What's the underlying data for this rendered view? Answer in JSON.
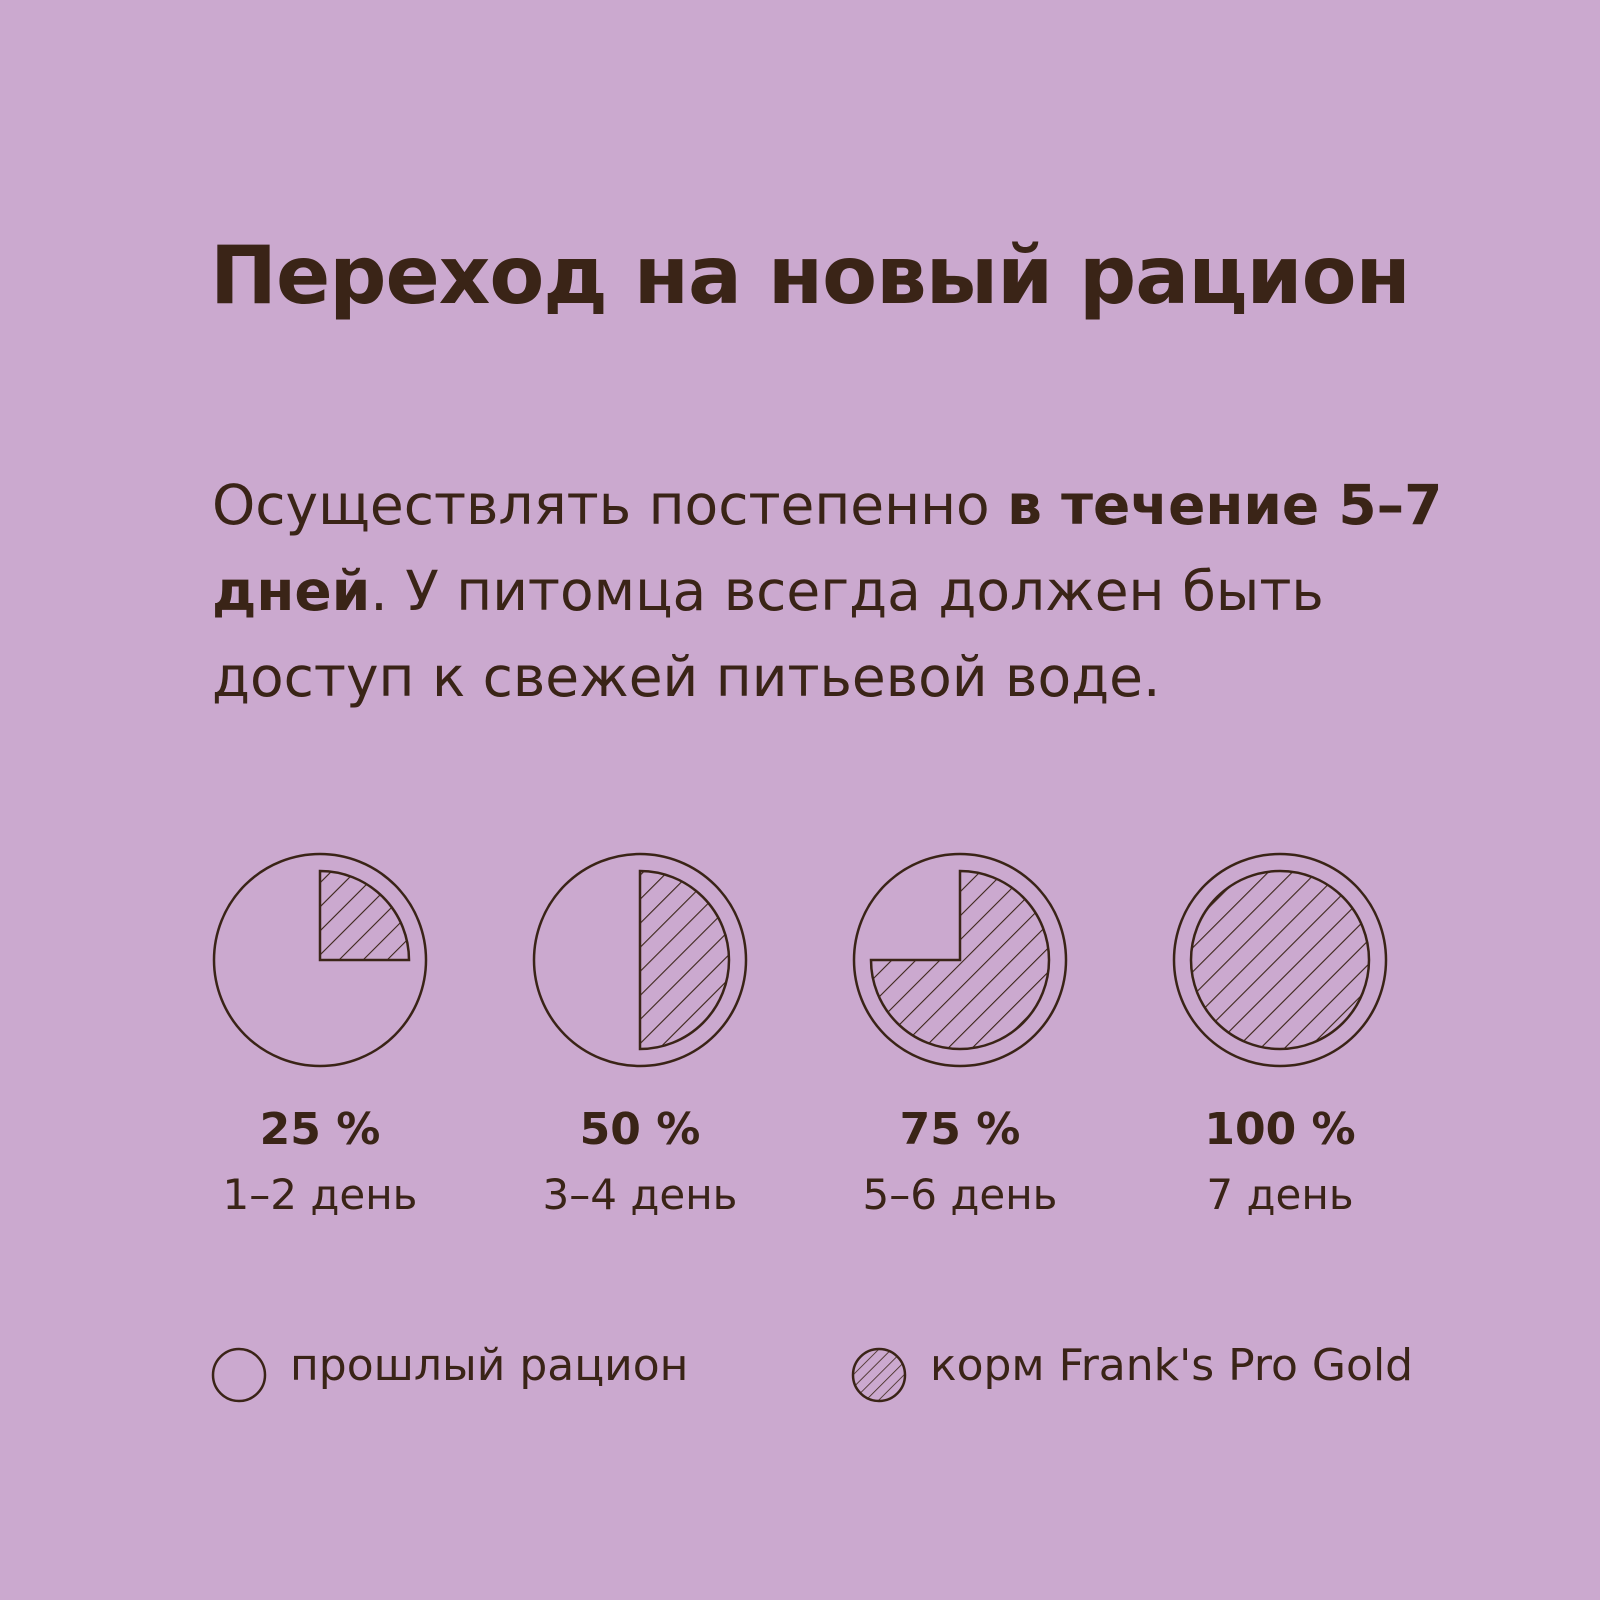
{
  "title": "Переход на новый рацион",
  "intro": {
    "part1": "Осуществлять постепенно ",
    "bold": "в течение 5–7 дней",
    "part2": ". У питомца всегда должен быть доступ к свежей питьевой воде."
  },
  "chart_data": {
    "type": "pie",
    "items": [
      {
        "percent_label": "25 %",
        "day_label": "1–2 день",
        "new_share": 25
      },
      {
        "percent_label": "50 %",
        "day_label": "3–4 день",
        "new_share": 50
      },
      {
        "percent_label": "75 %",
        "day_label": "5–6 день",
        "new_share": 75
      },
      {
        "percent_label": "100 %",
        "day_label": "7 день",
        "new_share": 100
      }
    ],
    "legend": {
      "old": "прошлый рацион",
      "new": "корм Frank's Pro Gold"
    }
  },
  "colors": {
    "background": "#cba9cf",
    "ink": "#3a2417"
  }
}
